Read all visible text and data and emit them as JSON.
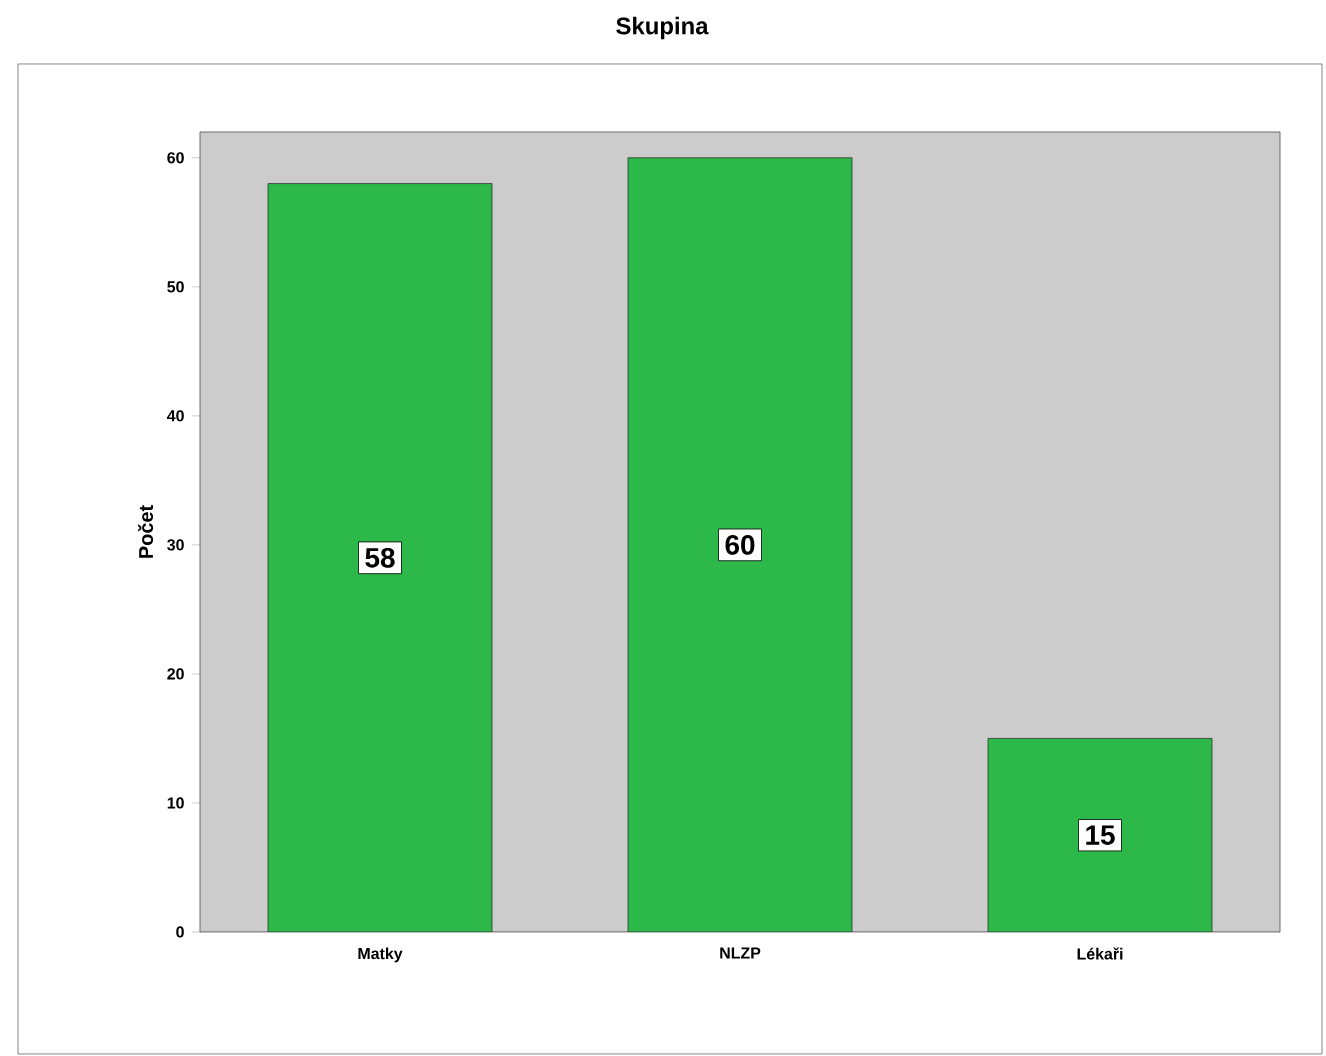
{
  "chart_data": {
    "type": "bar",
    "title": "Skupina",
    "ylabel": "Počet",
    "categories": [
      "Matky",
      "NLZP",
      "Lékaři"
    ],
    "values": [
      58,
      60,
      15
    ],
    "color": "#2db84a",
    "data_labels": true,
    "ylim": [
      0,
      62
    ],
    "yticks": [
      0,
      10,
      20,
      30,
      40,
      50,
      60
    ]
  }
}
